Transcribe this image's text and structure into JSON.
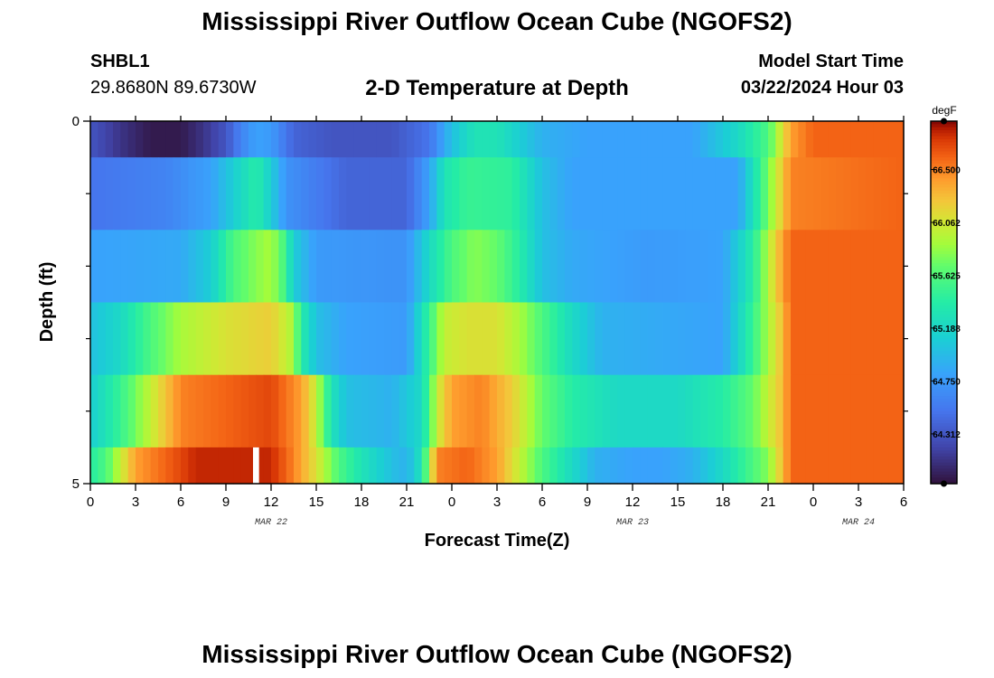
{
  "header": {
    "title": "Mississippi River Outflow Ocean Cube (NGOFS2)",
    "station_id": "SHBL1",
    "station_coords": "29.8680N  89.6730W",
    "subtitle": "2-D Temperature at Depth",
    "start_label": "Model Start Time",
    "start_value": "03/22/2024 Hour 03",
    "footer_title": "Mississippi River Outflow Ocean Cube (NGOFS2)"
  },
  "chart_data": {
    "type": "heatmap",
    "title": "2-D Temperature at Depth",
    "xlabel": "Forecast Time(Z)",
    "ylabel": "Depth (ft)",
    "x_range_hours": [
      0,
      54
    ],
    "x_tick_labels": [
      "0",
      "3",
      "6",
      "9",
      "12",
      "15",
      "18",
      "21",
      "0",
      "3",
      "6",
      "9",
      "12",
      "15",
      "18",
      "21",
      "0",
      "3",
      "6"
    ],
    "date_labels": [
      {
        "label": "MAR 22",
        "at_hour": 12
      },
      {
        "label": "MAR 23",
        "at_hour": 36
      },
      {
        "label": "MAR 24",
        "at_hour": 51
      }
    ],
    "y_range": [
      0,
      5
    ],
    "y_tick_labels": [
      "0",
      "5"
    ],
    "y_minor_ticks": [
      1,
      2,
      3,
      4
    ],
    "colorbar": {
      "unit": "degF",
      "range": [
        63.9,
        66.9
      ],
      "tick_labels": [
        "66.500",
        "66.062",
        "65.625",
        "65.188",
        "64.750",
        "64.312"
      ],
      "tick_values": [
        66.5,
        66.062,
        65.625,
        65.188,
        64.75,
        64.312
      ]
    },
    "missing": {
      "layer": 5,
      "hours": [
        10.8,
        11.2
      ]
    },
    "layers": [
      {
        "depth_band": [
          0,
          0.5
        ],
        "keyframes": [
          [
            0,
            64.3
          ],
          [
            2,
            64.1
          ],
          [
            4,
            63.95
          ],
          [
            6,
            63.95
          ],
          [
            7.5,
            64.1
          ],
          [
            9,
            64.3
          ],
          [
            10,
            64.6
          ],
          [
            11,
            64.8
          ],
          [
            12,
            64.75
          ],
          [
            13.5,
            64.4
          ],
          [
            16,
            64.3
          ],
          [
            20,
            64.3
          ],
          [
            22.5,
            64.5
          ],
          [
            24,
            65.0
          ],
          [
            25.5,
            65.3
          ],
          [
            27,
            65.3
          ],
          [
            28.5,
            65.1
          ],
          [
            30,
            64.9
          ],
          [
            33,
            64.8
          ],
          [
            40,
            64.8
          ],
          [
            43,
            65.2
          ],
          [
            45,
            65.6
          ],
          [
            46.5,
            66.4
          ],
          [
            48,
            66.6
          ],
          [
            54,
            66.6
          ]
        ]
      },
      {
        "depth_band": [
          0.5,
          1.5
        ],
        "keyframes": [
          [
            0,
            64.5
          ],
          [
            5,
            64.6
          ],
          [
            8,
            64.8
          ],
          [
            10,
            65.2
          ],
          [
            11,
            65.4
          ],
          [
            12,
            65.1
          ],
          [
            13,
            64.7
          ],
          [
            17,
            64.4
          ],
          [
            21,
            64.4
          ],
          [
            22.5,
            64.8
          ],
          [
            23.5,
            65.3
          ],
          [
            25,
            65.5
          ],
          [
            28,
            65.45
          ],
          [
            30,
            65.0
          ],
          [
            32,
            64.8
          ],
          [
            43,
            64.8
          ],
          [
            44.5,
            65.5
          ],
          [
            45.5,
            66.0
          ],
          [
            46.5,
            66.5
          ],
          [
            54,
            66.6
          ]
        ]
      },
      {
        "depth_band": [
          1.5,
          2.5
        ],
        "keyframes": [
          [
            0,
            64.8
          ],
          [
            6,
            64.85
          ],
          [
            8,
            65.1
          ],
          [
            9.5,
            65.6
          ],
          [
            11,
            65.8
          ],
          [
            12,
            65.9
          ],
          [
            12.8,
            65.6
          ],
          [
            13.5,
            65.1
          ],
          [
            15,
            64.75
          ],
          [
            20,
            64.7
          ],
          [
            21,
            64.7
          ],
          [
            22.5,
            65.2
          ],
          [
            24,
            65.6
          ],
          [
            25.5,
            65.8
          ],
          [
            27,
            65.7
          ],
          [
            28.5,
            65.4
          ],
          [
            30,
            65.0
          ],
          [
            32,
            64.85
          ],
          [
            37,
            64.75
          ],
          [
            42,
            64.8
          ],
          [
            44,
            65.4
          ],
          [
            45.5,
            66.2
          ],
          [
            46.5,
            66.6
          ],
          [
            54,
            66.6
          ]
        ]
      },
      {
        "depth_band": [
          2.5,
          3.5
        ],
        "keyframes": [
          [
            0,
            65.0
          ],
          [
            2,
            65.2
          ],
          [
            4,
            65.6
          ],
          [
            6,
            65.9
          ],
          [
            9,
            66.1
          ],
          [
            12,
            66.2
          ],
          [
            13.5,
            65.9
          ],
          [
            14,
            65.4
          ],
          [
            15,
            65.0
          ],
          [
            17,
            64.8
          ],
          [
            21,
            64.75
          ],
          [
            22.5,
            65.5
          ],
          [
            23.5,
            66.0
          ],
          [
            25,
            66.1
          ],
          [
            27,
            66.1
          ],
          [
            28.5,
            65.9
          ],
          [
            30,
            65.6
          ],
          [
            32,
            65.2
          ],
          [
            34,
            64.9
          ],
          [
            42,
            64.8
          ],
          [
            44,
            65.5
          ],
          [
            46,
            66.3
          ],
          [
            46.5,
            66.6
          ],
          [
            54,
            66.6
          ]
        ]
      },
      {
        "depth_band": [
          3.5,
          4.5
        ],
        "keyframes": [
          [
            0,
            65.1
          ],
          [
            2,
            65.5
          ],
          [
            4,
            66.0
          ],
          [
            6,
            66.5
          ],
          [
            9,
            66.6
          ],
          [
            12,
            66.7
          ],
          [
            14,
            66.4
          ],
          [
            15,
            66.0
          ],
          [
            16,
            65.3
          ],
          [
            17,
            65.0
          ],
          [
            20,
            64.9
          ],
          [
            22,
            65.2
          ],
          [
            23,
            66.0
          ],
          [
            24,
            66.4
          ],
          [
            26,
            66.5
          ],
          [
            28,
            66.2
          ],
          [
            30,
            65.7
          ],
          [
            32,
            65.4
          ],
          [
            35,
            65.2
          ],
          [
            39,
            65.2
          ],
          [
            42,
            65.4
          ],
          [
            44,
            65.7
          ],
          [
            46,
            66.3
          ],
          [
            46.5,
            66.6
          ],
          [
            54,
            66.6
          ]
        ]
      },
      {
        "depth_band": [
          4.5,
          5
        ],
        "keyframes": [
          [
            0,
            65.4
          ],
          [
            1,
            65.6
          ],
          [
            2,
            66.0
          ],
          [
            3,
            66.4
          ],
          [
            5,
            66.6
          ],
          [
            7,
            66.8
          ],
          [
            9,
            66.8
          ],
          [
            12,
            66.8
          ],
          [
            13.5,
            66.5
          ],
          [
            15,
            66.1
          ],
          [
            16.5,
            65.6
          ],
          [
            18,
            65.3
          ],
          [
            20,
            65.0
          ],
          [
            21,
            64.9
          ],
          [
            22,
            65.3
          ],
          [
            23,
            66.5
          ],
          [
            25,
            66.6
          ],
          [
            27,
            66.4
          ],
          [
            28.5,
            66.0
          ],
          [
            30,
            65.6
          ],
          [
            32,
            65.2
          ],
          [
            33.5,
            64.9
          ],
          [
            36,
            64.8
          ],
          [
            38,
            64.8
          ],
          [
            40,
            64.9
          ],
          [
            42,
            65.2
          ],
          [
            44,
            65.6
          ],
          [
            45,
            65.8
          ],
          [
            46,
            66.3
          ],
          [
            46.5,
            66.6
          ],
          [
            54,
            66.6
          ]
        ]
      }
    ]
  }
}
